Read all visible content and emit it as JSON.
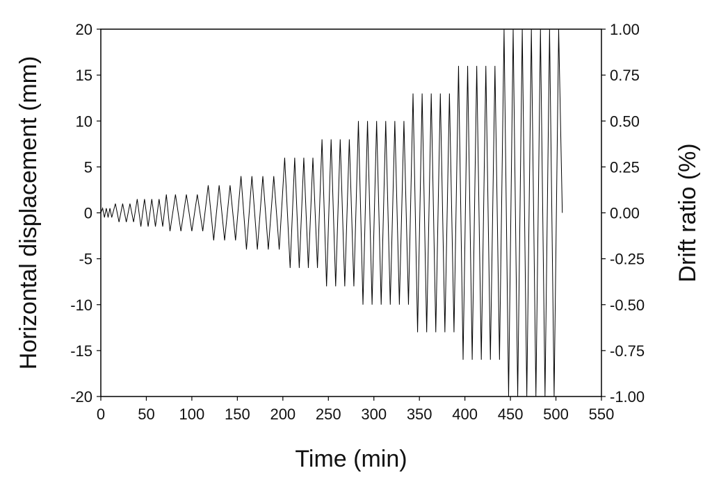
{
  "chart_data": {
    "type": "line",
    "title": "",
    "xlabel": "Time (min)",
    "ylabel": "Horizontal displacement (mm)",
    "y2label": "Drift ratio (%)",
    "xlim": [
      0,
      550
    ],
    "ylim": [
      -20,
      20
    ],
    "y2lim": [
      -1.0,
      1.0
    ],
    "grid": false,
    "legend": "none",
    "line_color": "#000000",
    "x_ticks": [
      "0",
      "50",
      "100",
      "150",
      "200",
      "250",
      "300",
      "350",
      "400",
      "450",
      "500",
      "550"
    ],
    "y_ticks": [
      "-20",
      "-15",
      "-10",
      "-5",
      "0",
      "5",
      "10",
      "15",
      "20"
    ],
    "y2_ticks": [
      "-1.00",
      "-0.75",
      "-0.50",
      "-0.25",
      "0.00",
      "0.25",
      "0.50",
      "0.75",
      "1.00"
    ],
    "series": [
      {
        "name": "",
        "x": [
          0,
          2,
          4,
          6,
          8,
          10,
          12,
          16,
          20,
          24,
          28,
          32,
          36,
          40,
          44,
          48,
          52,
          56,
          60,
          64,
          68,
          72,
          76,
          82,
          88,
          94,
          100,
          106,
          112,
          118,
          124,
          130,
          136,
          142,
          148,
          154,
          160,
          166,
          172,
          178,
          184,
          190,
          196,
          202,
          208,
          213,
          218,
          223,
          228,
          233,
          238,
          243,
          248,
          253,
          258,
          263,
          268,
          273,
          278,
          283,
          288,
          293,
          298,
          303,
          308,
          313,
          318,
          323,
          328,
          333,
          338,
          343,
          348,
          353,
          358,
          363,
          368,
          373,
          378,
          383,
          388,
          393,
          398,
          403,
          408,
          413,
          418,
          423,
          428,
          433,
          438,
          443,
          448,
          453,
          458,
          463,
          468,
          473,
          478,
          483,
          488,
          493,
          498,
          503,
          507
        ],
        "y": [
          0,
          0.5,
          -0.5,
          0.5,
          -0.5,
          0.5,
          -0.5,
          1,
          -1,
          1,
          -1,
          1,
          -1,
          1.5,
          -1.5,
          1.5,
          -1.5,
          1.5,
          -1.5,
          1.5,
          -1.5,
          2,
          -2,
          2,
          -2,
          2,
          -2,
          2,
          -2,
          3,
          -3,
          3,
          -3,
          3,
          -3,
          4,
          -4,
          4,
          -4,
          4,
          -4,
          4,
          -4,
          6,
          -6,
          6,
          -6,
          6,
          -6,
          6,
          -6,
          8,
          -8,
          8,
          -8,
          8,
          -8,
          8,
          -8,
          10,
          -10,
          10,
          -10,
          10,
          -10,
          10,
          -10,
          10,
          -10,
          10,
          -10,
          13,
          -13,
          13,
          -13,
          13,
          -13,
          13,
          -13,
          13,
          -13,
          16,
          -16,
          16,
          -16,
          16,
          -16,
          16,
          -16,
          16,
          -16,
          20,
          -20,
          20,
          -20,
          20,
          -20,
          20,
          -20,
          20,
          -20,
          20,
          -20,
          20,
          0
        ]
      }
    ]
  }
}
